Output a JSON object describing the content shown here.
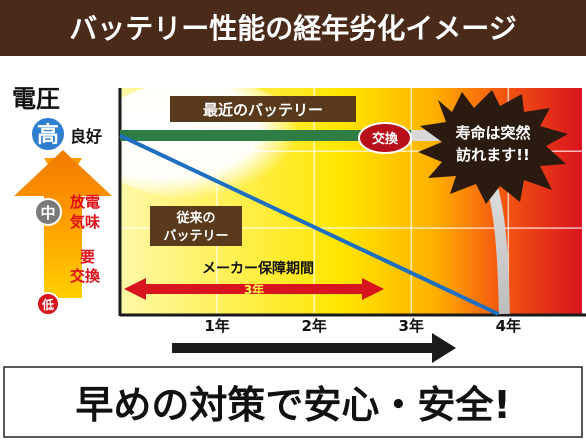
{
  "header": {
    "title": "バッテリー性能の経年劣化イメージ"
  },
  "axis": {
    "y_title": "電圧",
    "levels": {
      "high": "高",
      "mid": "中",
      "low": "低"
    },
    "good_label": "良好",
    "discharge_label_1": "放電",
    "discharge_label_2": "気味",
    "replace_label_1": "要",
    "replace_label_2": "交換"
  },
  "labels": {
    "latest_battery": "最近のバッテリー",
    "conventional_1": "従来の",
    "conventional_2": "バッテリー",
    "exchange": "交換",
    "burst_1": "寿命は突然",
    "burst_2": "訪れます!!",
    "warranty_title": "メーカー保障期間",
    "warranty_value": "3年"
  },
  "footer": {
    "slogan": "早めの対策で安心・安全!"
  },
  "chart_data": {
    "type": "line",
    "x": [
      0,
      1,
      2,
      3,
      4
    ],
    "x_tick_labels": [
      "1年",
      "2年",
      "3年",
      "4年"
    ],
    "xlim": [
      0,
      4.8
    ],
    "ylim": [
      0,
      1
    ],
    "y_levels": [
      "低",
      "中",
      "高"
    ],
    "series": [
      {
        "name": "最近のバッテリー",
        "color": "#2e7d45",
        "values": [
          0.93,
          0.93,
          0.93,
          0.92,
          0.0
        ]
      },
      {
        "name": "従来のバッテリー",
        "color": "#1e6fc0",
        "values": [
          0.93,
          0.7,
          0.47,
          0.24,
          0.0
        ]
      }
    ],
    "annotations": [
      "交換",
      "寿命は突然訪れます!!",
      "メーカー保障期間 3年"
    ]
  },
  "colors": {
    "header_bg": "#4a2b1a",
    "label_bg": "#5a3a1c",
    "warranty_red": "#d8141e",
    "exchange_red": "#b8101a",
    "axis_arrow": "#1a1a1a"
  }
}
